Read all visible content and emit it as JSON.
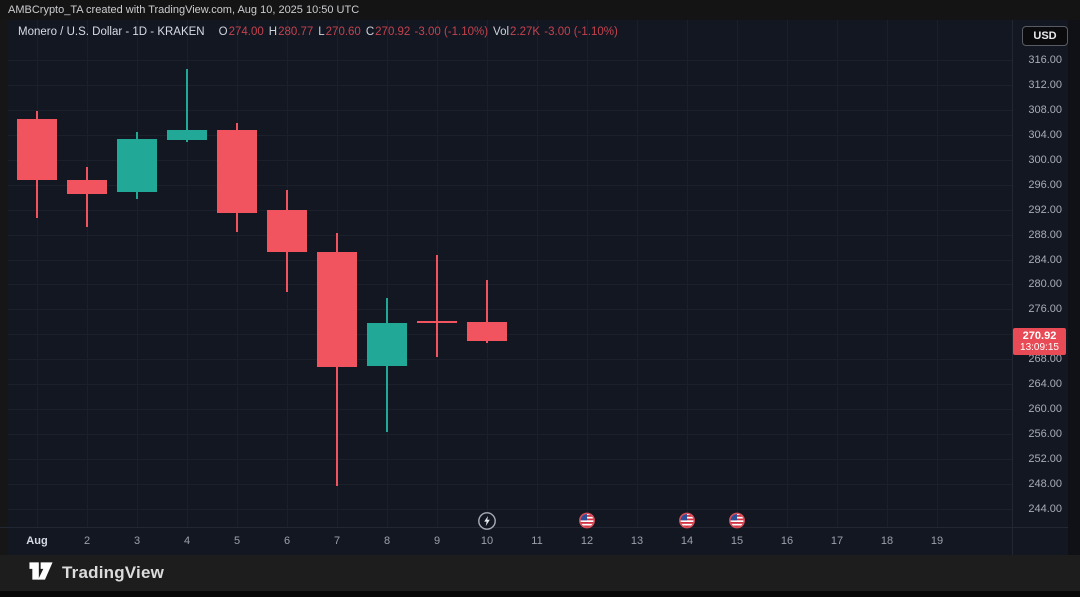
{
  "top_bar": {
    "attribution": "AMBCrypto_TA created with TradingView.com, Aug 10, 2025 10:50 UTC"
  },
  "header": {
    "currency_button": "USD",
    "legend_segments": [
      {
        "text": "Monero / U.S. Dollar - 1D - KRAKEN",
        "role": "title"
      },
      {
        "text": "O",
        "role": "label"
      },
      {
        "text": "274.00",
        "role": "value-down"
      },
      {
        "text": "H",
        "role": "label"
      },
      {
        "text": "280.77",
        "role": "value-down"
      },
      {
        "text": "L",
        "role": "label"
      },
      {
        "text": "270.60",
        "role": "value-down"
      },
      {
        "text": "C",
        "role": "label"
      },
      {
        "text": "270.92",
        "role": "value-down"
      },
      {
        "text": " -3.00 (-1.10%)",
        "role": "value-down"
      },
      {
        "text": "Vol",
        "role": "label"
      },
      {
        "text": "2.27K",
        "role": "value-down"
      },
      {
        "text": " -3.00 (-1.10%)",
        "role": "value-down"
      }
    ]
  },
  "chart_data": {
    "type": "candlestick",
    "title": "Monero / U.S. Dollar",
    "timeframe": "1D",
    "exchange": "KRAKEN",
    "ohlc_display": {
      "open": "274.00",
      "high": "280.77",
      "low": "270.60",
      "close": "270.92",
      "change": "-3.00",
      "change_pct": "-1.10%",
      "volume": "2.27K"
    },
    "y_axis": {
      "min": 244,
      "max": 316,
      "step": 4,
      "labels": [
        "316.00",
        "312.00",
        "308.00",
        "304.00",
        "300.00",
        "296.00",
        "292.00",
        "288.00",
        "284.00",
        "280.00",
        "276.00",
        "272.00",
        "268.00",
        "264.00",
        "260.00",
        "256.00",
        "252.00",
        "248.00",
        "244.00"
      ]
    },
    "x_axis": {
      "labels": [
        "Aug",
        "2",
        "3",
        "4",
        "5",
        "6",
        "7",
        "8",
        "9",
        "10",
        "11",
        "12",
        "13",
        "14",
        "15",
        "16",
        "17",
        "18",
        "19"
      ]
    },
    "candles": [
      {
        "date": "Aug 1",
        "open": 306.5,
        "high": 307.8,
        "low": 290.7,
        "close": 296.7
      },
      {
        "date": "Aug 2",
        "open": 296.8,
        "high": 298.8,
        "low": 289.2,
        "close": 294.5
      },
      {
        "date": "Aug 3",
        "open": 294.8,
        "high": 304.5,
        "low": 293.7,
        "close": 303.4
      },
      {
        "date": "Aug 4",
        "open": 303.2,
        "high": 314.5,
        "low": 302.9,
        "close": 304.8
      },
      {
        "date": "Aug 5",
        "open": 304.8,
        "high": 305.9,
        "low": 288.4,
        "close": 291.5
      },
      {
        "date": "Aug 6",
        "open": 291.9,
        "high": 295.2,
        "low": 278.8,
        "close": 285.2
      },
      {
        "date": "Aug 7",
        "open": 285.2,
        "high": 288.3,
        "low": 247.7,
        "close": 266.8
      },
      {
        "date": "Aug 8",
        "open": 267.0,
        "high": 277.8,
        "low": 256.3,
        "close": 273.8
      },
      {
        "date": "Aug 9",
        "open": 274.2,
        "high": 284.7,
        "low": 268.4,
        "close": 273.9
      },
      {
        "date": "Aug 10",
        "open": 274.0,
        "high": 280.77,
        "low": 270.6,
        "close": 270.92
      }
    ],
    "last_price_label": {
      "price": "270.92",
      "countdown": "13:09:15"
    },
    "events": [
      {
        "day_label": "10",
        "type": "lightning"
      },
      {
        "day_label": "12",
        "type": "us-flag"
      },
      {
        "day_label": "14",
        "type": "us-flag"
      },
      {
        "day_label": "15",
        "type": "us-flag"
      }
    ],
    "colors": {
      "up": "#21a897",
      "down": "#f2545f",
      "label_bg": "#e84b55",
      "legend_value": "#c2434e",
      "axis_text": "#a8acb7",
      "background": "#131722"
    }
  },
  "footer": {
    "logo_text": "TradingView"
  }
}
